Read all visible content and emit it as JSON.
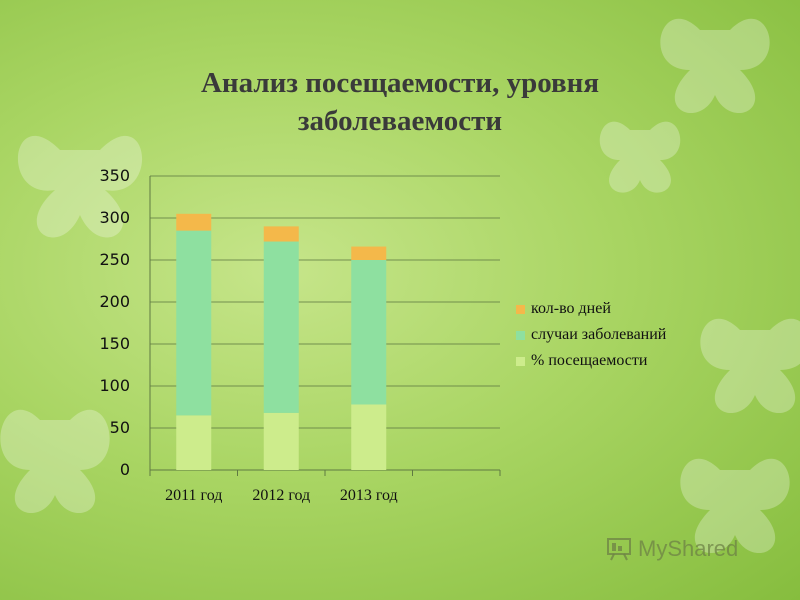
{
  "title_line1": "Анализ посещаемости, уровня",
  "title_line2": "заболеваемости",
  "watermark": "MyShared",
  "colors": {
    "days": "#f4b84a",
    "cases": "#8ee0a0",
    "attendance": "#cdec8c",
    "grid": "#5f7a42"
  },
  "chart_data": {
    "type": "bar",
    "stacked": true,
    "title": "Анализ посещаемости, уровня заболеваемости",
    "categories": [
      "2011 год",
      "2012 год",
      "2013 год"
    ],
    "series": [
      {
        "name": "% посещаемости",
        "values": [
          65,
          68,
          78
        ]
      },
      {
        "name": "случаи заболеваний",
        "values": [
          220,
          204,
          172
        ]
      },
      {
        "name": "кол-во дней",
        "values": [
          20,
          18,
          16
        ]
      }
    ],
    "ylim": [
      0,
      350
    ],
    "yticks": [
      0,
      50,
      100,
      150,
      200,
      250,
      300,
      350
    ],
    "grid": true,
    "legend": "right"
  },
  "legend": [
    {
      "label": "кол-во дней",
      "color": "#f4b84a"
    },
    {
      "label": "случаи заболеваний",
      "color": "#8ee0a0"
    },
    {
      "label": "% посещаемости",
      "color": "#cdec8c"
    }
  ]
}
